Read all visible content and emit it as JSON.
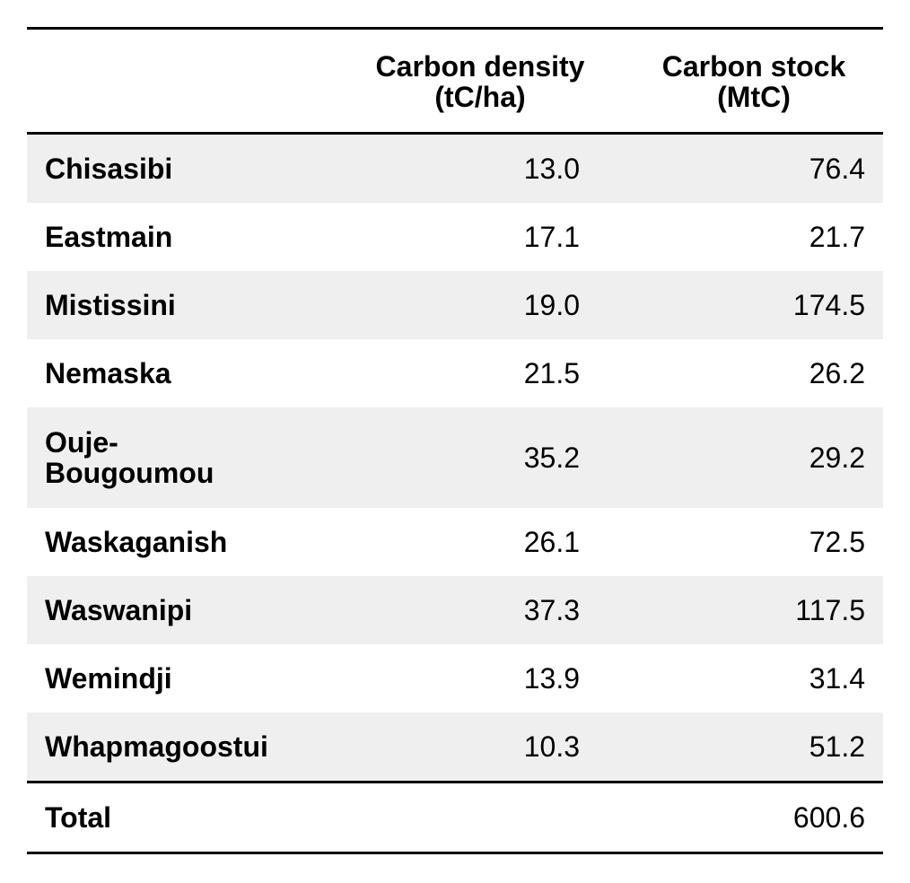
{
  "headers": {
    "name": "",
    "density_line1": "Carbon density",
    "density_line2": "(tC/ha)",
    "stock_line1": "Carbon stock",
    "stock_line2": "(MtC)"
  },
  "rows": [
    {
      "name": "Chisasibi",
      "density": "13.0",
      "stock": "76.4"
    },
    {
      "name": "Eastmain",
      "density": "17.1",
      "stock": "21.7"
    },
    {
      "name": "Mistissini",
      "density": "19.0",
      "stock": "174.5"
    },
    {
      "name": "Nemaska",
      "density": "21.5",
      "stock": "26.2"
    },
    {
      "name": "Ouje-\nBougoumou",
      "density": "35.2",
      "stock": "29.2"
    },
    {
      "name": "Waskaganish",
      "density": "26.1",
      "stock": "72.5"
    },
    {
      "name": "Waswanipi",
      "density": "37.3",
      "stock": "117.5"
    },
    {
      "name": "Wemindji",
      "density": "13.9",
      "stock": "31.4"
    },
    {
      "name": "Whapmagoostui",
      "density": "10.3",
      "stock": "51.2"
    }
  ],
  "total": {
    "name": "Total",
    "density": "",
    "stock": "600.6"
  }
}
